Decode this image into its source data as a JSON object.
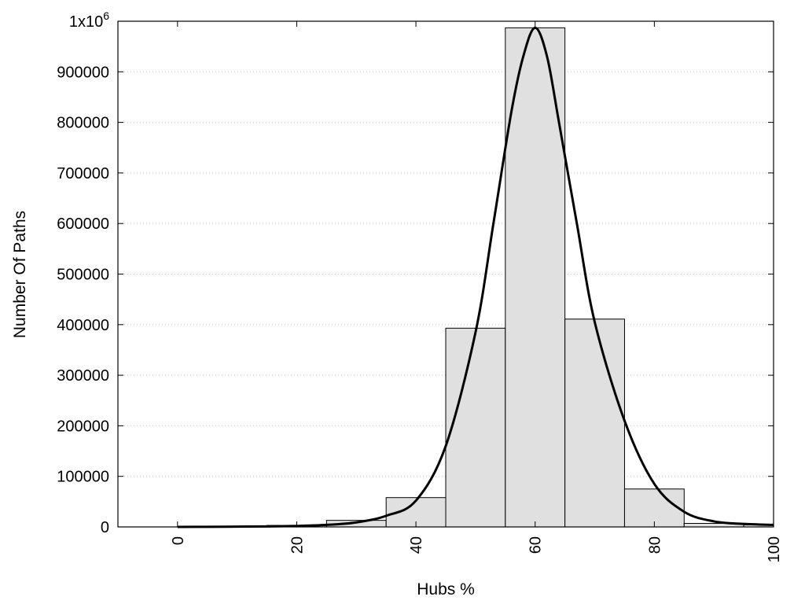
{
  "chart_data": {
    "type": "bar",
    "title": "",
    "xlabel": "Hubs %",
    "ylabel": "Number Of Paths",
    "xlim": [
      -10,
      100
    ],
    "ylim": [
      0,
      1000000
    ],
    "grid": true,
    "bar_color": "#e0e0e0",
    "bar_edge_color": "#000000",
    "curve_color": "#000000",
    "x_ticks": [
      0,
      20,
      40,
      60,
      80,
      100
    ],
    "x_tick_labels": [
      "0",
      "20",
      "40",
      "60",
      "80",
      "100"
    ],
    "y_ticks": [
      0,
      100000,
      200000,
      300000,
      400000,
      500000,
      600000,
      700000,
      800000,
      900000,
      1000000
    ],
    "y_tick_labels": [
      "0",
      "100000",
      "200000",
      "300000",
      "400000",
      "500000",
      "600000",
      "700000",
      "800000",
      "900000",
      "1x10"
    ],
    "y_top_exponent": "6",
    "bar_width": 10,
    "bars": [
      {
        "x": 0,
        "value": 0
      },
      {
        "x": 10,
        "value": 500
      },
      {
        "x": 20,
        "value": 3000
      },
      {
        "x": 30,
        "value": 13000
      },
      {
        "x": 40,
        "value": 58000
      },
      {
        "x": 50,
        "value": 393000
      },
      {
        "x": 60,
        "value": 987000
      },
      {
        "x": 70,
        "value": 411000
      },
      {
        "x": 80,
        "value": 75000
      },
      {
        "x": 90,
        "value": 7000
      },
      {
        "x": 100,
        "value": 4000
      }
    ],
    "curve": [
      [
        0,
        0
      ],
      [
        5,
        200
      ],
      [
        10,
        600
      ],
      [
        15,
        1000
      ],
      [
        20,
        2000
      ],
      [
        25,
        4000
      ],
      [
        30,
        9000
      ],
      [
        35,
        22000
      ],
      [
        40,
        52000
      ],
      [
        45,
        160000
      ],
      [
        50,
        385000
      ],
      [
        53,
        600000
      ],
      [
        56,
        820000
      ],
      [
        58,
        930000
      ],
      [
        60,
        987000
      ],
      [
        62,
        930000
      ],
      [
        64,
        800000
      ],
      [
        67,
        600000
      ],
      [
        70,
        405000
      ],
      [
        75,
        210000
      ],
      [
        80,
        85000
      ],
      [
        85,
        30000
      ],
      [
        90,
        11000
      ],
      [
        95,
        6000
      ],
      [
        100,
        4000
      ]
    ]
  }
}
